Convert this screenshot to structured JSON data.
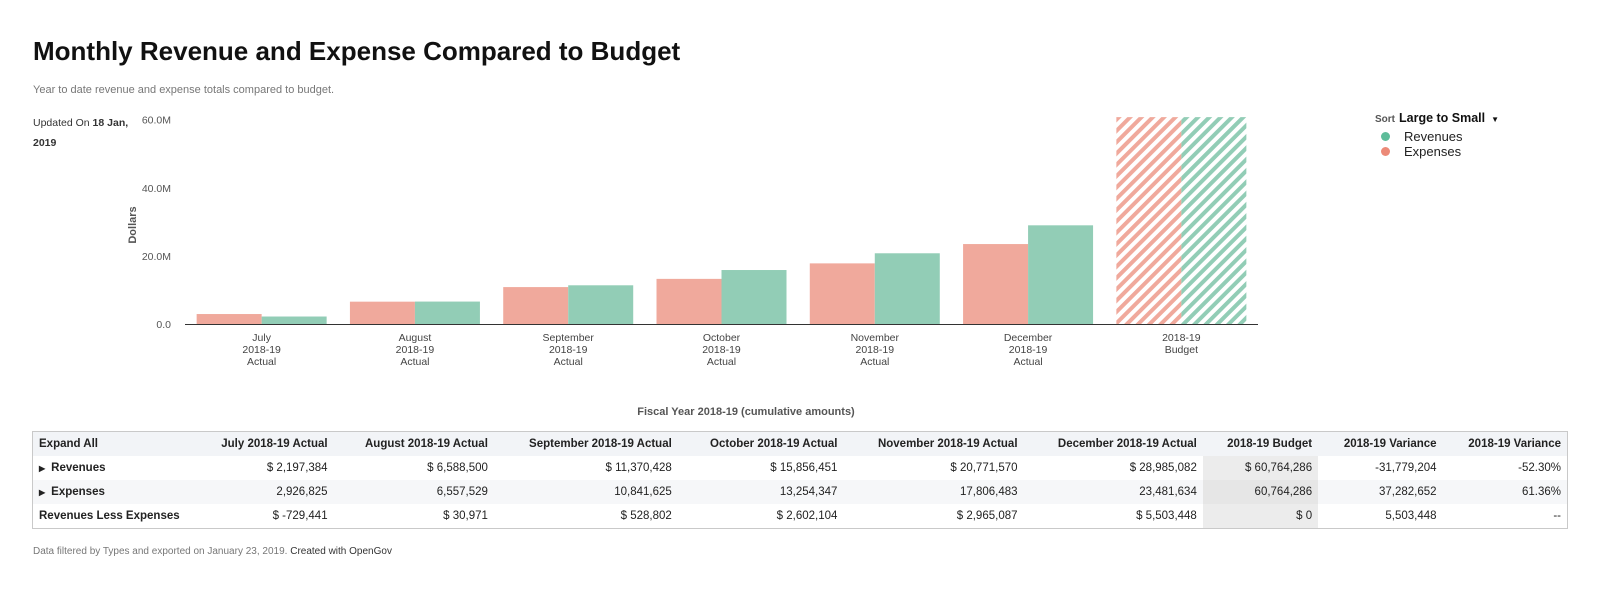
{
  "header": {
    "title": "Monthly Revenue and Expense Compared to Budget",
    "subtitle": "Year to date revenue and expense totals compared to budget.",
    "updated_label": "Updated On",
    "updated_date": "18 Jan, 2019"
  },
  "legend": {
    "sort_label": "Sort",
    "sort_value": "Large to Small",
    "items": [
      "Revenues",
      "Expenses"
    ]
  },
  "colors": {
    "revenues": "#92cdb6",
    "expenses": "#f0a99c",
    "axis": "#333333"
  },
  "chart_data": {
    "type": "bar",
    "ylabel": "Dollars",
    "xlabel": "Fiscal Year 2018-19 (cumulative amounts)",
    "ylim": [
      0,
      60.8
    ],
    "yticks": [
      "0.0",
      "20.0M",
      "40.0M",
      "60.0M"
    ],
    "ytick_values": [
      0,
      20,
      40,
      60
    ],
    "categories": [
      [
        "July",
        "2018-19",
        "Actual"
      ],
      [
        "August",
        "2018-19",
        "Actual"
      ],
      [
        "September",
        "2018-19",
        "Actual"
      ],
      [
        "October",
        "2018-19",
        "Actual"
      ],
      [
        "November",
        "2018-19",
        "Actual"
      ],
      [
        "December",
        "2018-19",
        "Actual"
      ],
      [
        "2018-19",
        "Budget"
      ]
    ],
    "hatched_categories": [
      6
    ],
    "series": [
      {
        "name": "Expenses",
        "values": [
          2.926825,
          6.557529,
          10.841625,
          13.254347,
          17.806483,
          23.481634,
          60.764286
        ]
      },
      {
        "name": "Revenues",
        "values": [
          2.197384,
          6.5885,
          11.370428,
          15.856451,
          20.77157,
          28.985082,
          60.764286
        ]
      }
    ]
  },
  "table": {
    "expand_all": "Expand All",
    "columns": [
      "July 2018-19 Actual",
      "August 2018-19 Actual",
      "September 2018-19 Actual",
      "October 2018-19 Actual",
      "November 2018-19 Actual",
      "December 2018-19 Actual",
      "2018-19 Budget",
      "2018-19 Variance",
      "2018-19 Variance"
    ],
    "rows": [
      {
        "label": "Revenues",
        "cells": [
          "$ 2,197,384",
          "$ 6,588,500",
          "$ 11,370,428",
          "$ 15,856,451",
          "$ 20,771,570",
          "$ 28,985,082",
          "$ 60,764,286",
          "-31,779,204",
          "-52.30%"
        ]
      },
      {
        "label": "Expenses",
        "cells": [
          "2,926,825",
          "6,557,529",
          "10,841,625",
          "13,254,347",
          "17,806,483",
          "23,481,634",
          "60,764,286",
          "37,282,652",
          "61.36%"
        ]
      },
      {
        "label": "Revenues Less Expenses",
        "cells": [
          "$ -729,441",
          "$ 30,971",
          "$ 528,802",
          "$ 2,602,104",
          "$ 2,965,087",
          "$ 5,503,448",
          "$ 0",
          "5,503,448",
          "--"
        ]
      }
    ]
  },
  "footer": {
    "note": "Data filtered by Types and exported on January 23, 2019.",
    "brand": "Created with OpenGov"
  }
}
